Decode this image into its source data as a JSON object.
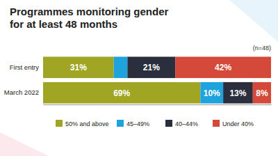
{
  "chart_data": {
    "type": "bar",
    "title": "Programmes monitoring gender for at least 48 months",
    "subtitle": "(n=48)",
    "orientation": "horizontal",
    "stacked": true,
    "data_labels": true,
    "tick_labels": "y",
    "legend": "bottom",
    "categories": [
      "First entry",
      "March 2022"
    ],
    "xlim": [
      0,
      100
    ],
    "series": [
      {
        "name": "50% and above",
        "color": "#a0a623",
        "values": [
          31,
          69
        ],
        "value_labels": [
          "31%",
          "69%"
        ]
      },
      {
        "name": "45–49%",
        "color": "#1fa3dc",
        "values": [
          6,
          10
        ],
        "value_labels": [
          null,
          "10%"
        ]
      },
      {
        "name": "40–44%",
        "color": "#2b2e3d",
        "values": [
          21,
          13
        ],
        "value_labels": [
          "21%",
          "13%"
        ]
      },
      {
        "name": "Under 40%",
        "color": "#d4493a",
        "values": [
          42,
          8
        ],
        "value_labels": [
          "42%",
          "8%"
        ]
      }
    ]
  }
}
